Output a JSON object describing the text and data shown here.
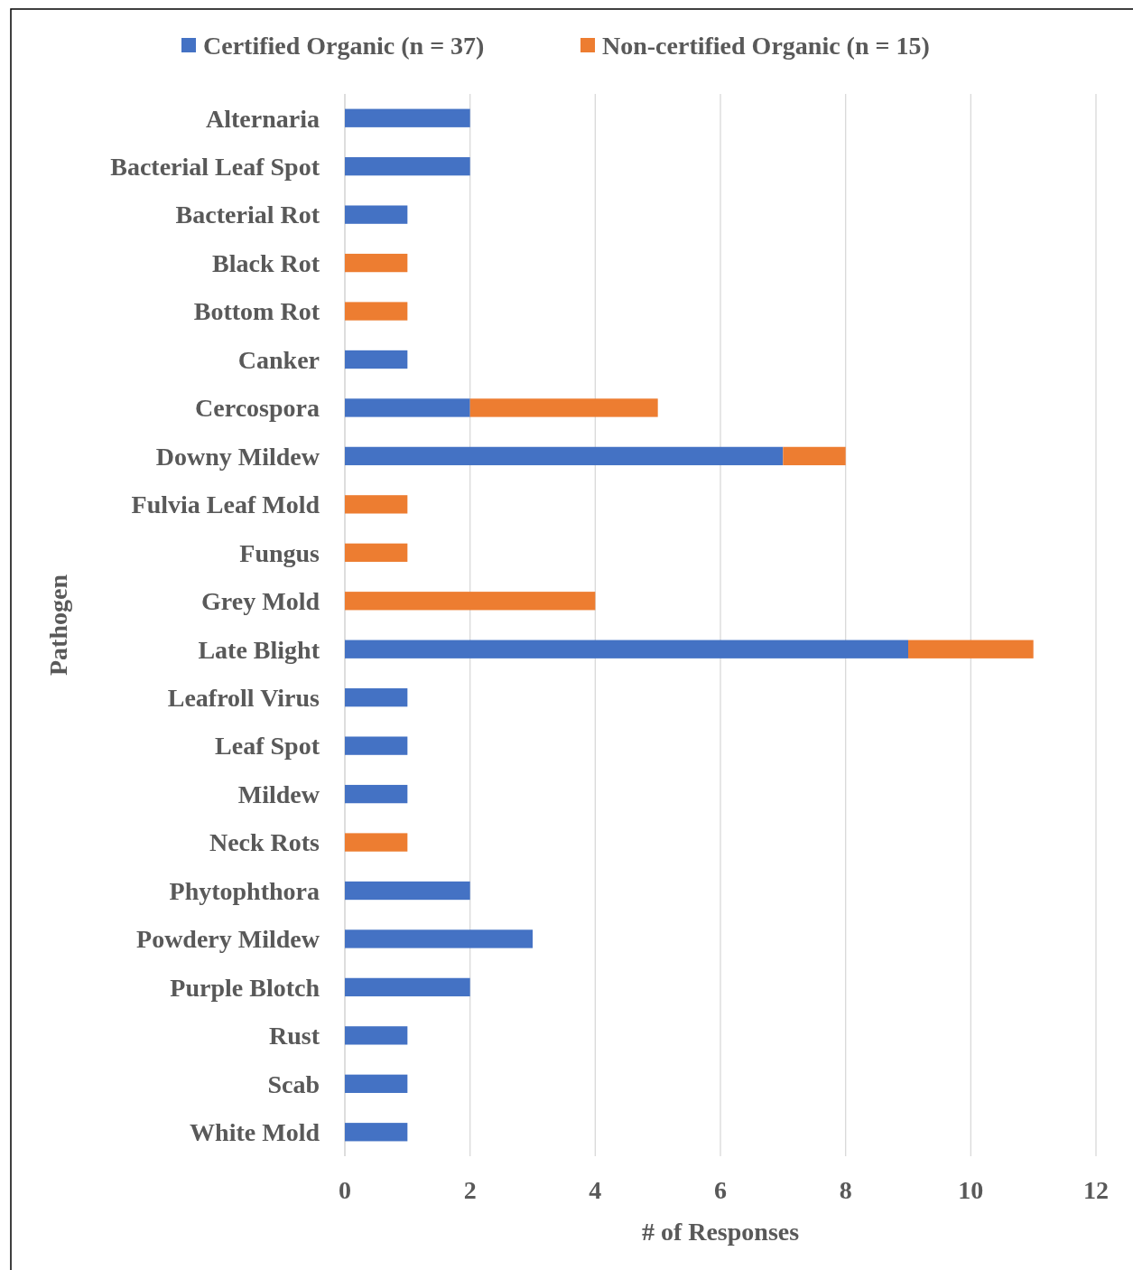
{
  "chart_data": {
    "type": "bar",
    "orientation": "horizontal",
    "stacked": true,
    "xlabel": "# of Responses",
    "ylabel": "Pathogen",
    "categories": [
      "Alternaria",
      "Bacterial Leaf Spot",
      "Bacterial Rot",
      "Black Rot",
      "Bottom Rot",
      "Canker",
      "Cercospora",
      "Downy Mildew",
      "Fulvia Leaf Mold",
      "Fungus",
      "Grey Mold",
      "Late Blight",
      "Leafroll Virus",
      "Leaf Spot",
      "Mildew",
      "Neck Rots",
      "Phytophthora",
      "Powdery Mildew",
      "Purple Blotch",
      "Rust",
      "Scab",
      "White Mold"
    ],
    "series": [
      {
        "name": "Certified Organic (n = 37)",
        "color": "#4472c4",
        "values": [
          2,
          2,
          1,
          0,
          0,
          1,
          2,
          7,
          0,
          0,
          0,
          9,
          1,
          1,
          1,
          0,
          2,
          3,
          2,
          1,
          1,
          1
        ]
      },
      {
        "name": "Non-certified Organic (n = 15)",
        "color": "#ed7d31",
        "values": [
          0,
          0,
          0,
          1,
          1,
          0,
          3,
          1,
          1,
          1,
          4,
          2,
          0,
          0,
          0,
          1,
          0,
          0,
          0,
          0,
          0,
          0
        ]
      }
    ],
    "xlim": [
      0,
      12
    ],
    "xticks": [
      0,
      2,
      4,
      6,
      8,
      10,
      12
    ],
    "grid": "x",
    "legend": "top"
  }
}
